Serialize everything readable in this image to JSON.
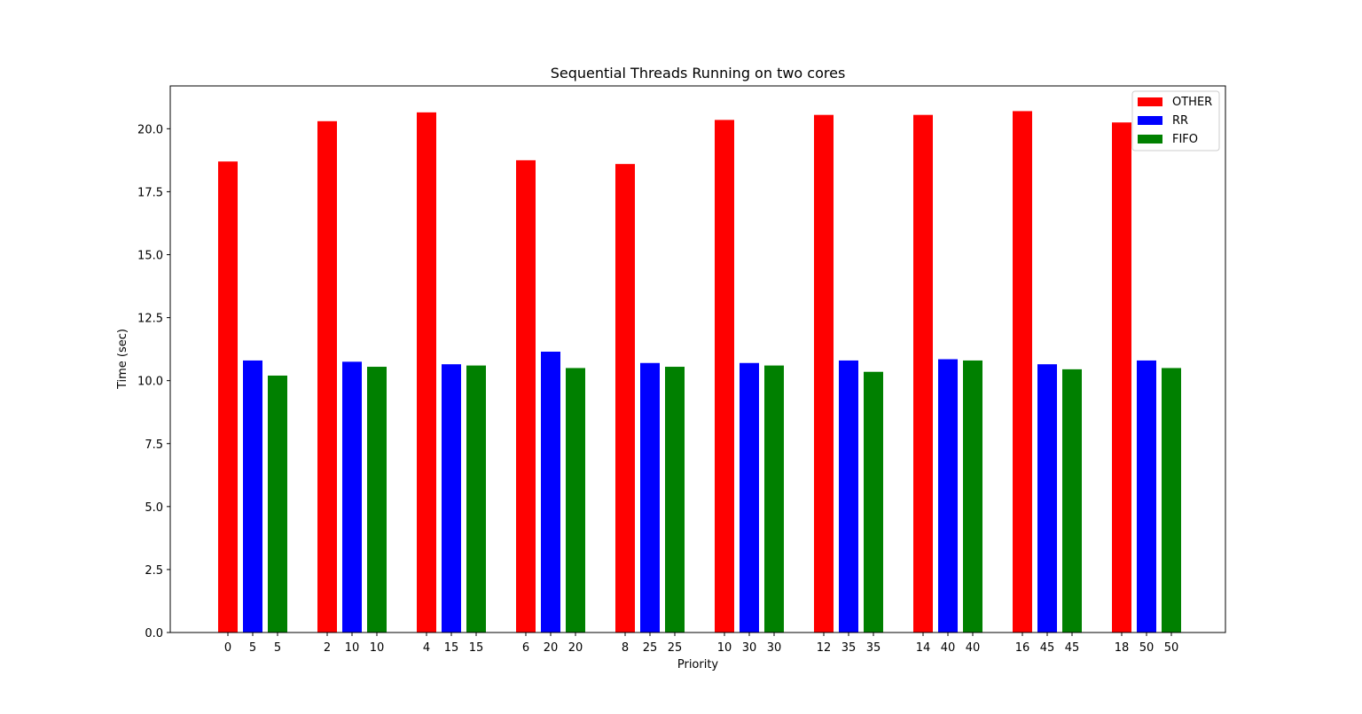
{
  "chart_data": {
    "type": "bar",
    "title": "Sequential Threads Running on two cores",
    "xlabel": "Priority",
    "ylabel": "Time (sec)",
    "ylim": [
      0,
      21.7
    ],
    "yticks": [
      "0.0",
      "2.5",
      "5.0",
      "7.5",
      "10.0",
      "12.5",
      "15.0",
      "17.5",
      "20.0"
    ],
    "grid": false,
    "legend_position": "top-right",
    "groups": 10,
    "series": [
      {
        "name": "OTHER",
        "color": "#ff0000",
        "tick_labels": [
          "0",
          "2",
          "4",
          "6",
          "8",
          "10",
          "12",
          "14",
          "16",
          "18"
        ],
        "values": [
          18.7,
          20.3,
          20.65,
          18.75,
          18.6,
          20.35,
          20.55,
          20.55,
          20.7,
          20.25
        ]
      },
      {
        "name": "RR",
        "color": "#0000ff",
        "tick_labels": [
          "5",
          "10",
          "15",
          "20",
          "25",
          "30",
          "35",
          "40",
          "45",
          "50"
        ],
        "values": [
          10.8,
          10.75,
          10.65,
          11.15,
          10.7,
          10.7,
          10.8,
          10.85,
          10.65,
          10.8
        ]
      },
      {
        "name": "FIFO",
        "color": "#008000",
        "tick_labels": [
          "5",
          "10",
          "15",
          "20",
          "25",
          "30",
          "35",
          "40",
          "45",
          "50"
        ],
        "values": [
          10.2,
          10.55,
          10.6,
          10.5,
          10.55,
          10.6,
          10.35,
          10.8,
          10.45,
          10.5
        ]
      }
    ]
  }
}
